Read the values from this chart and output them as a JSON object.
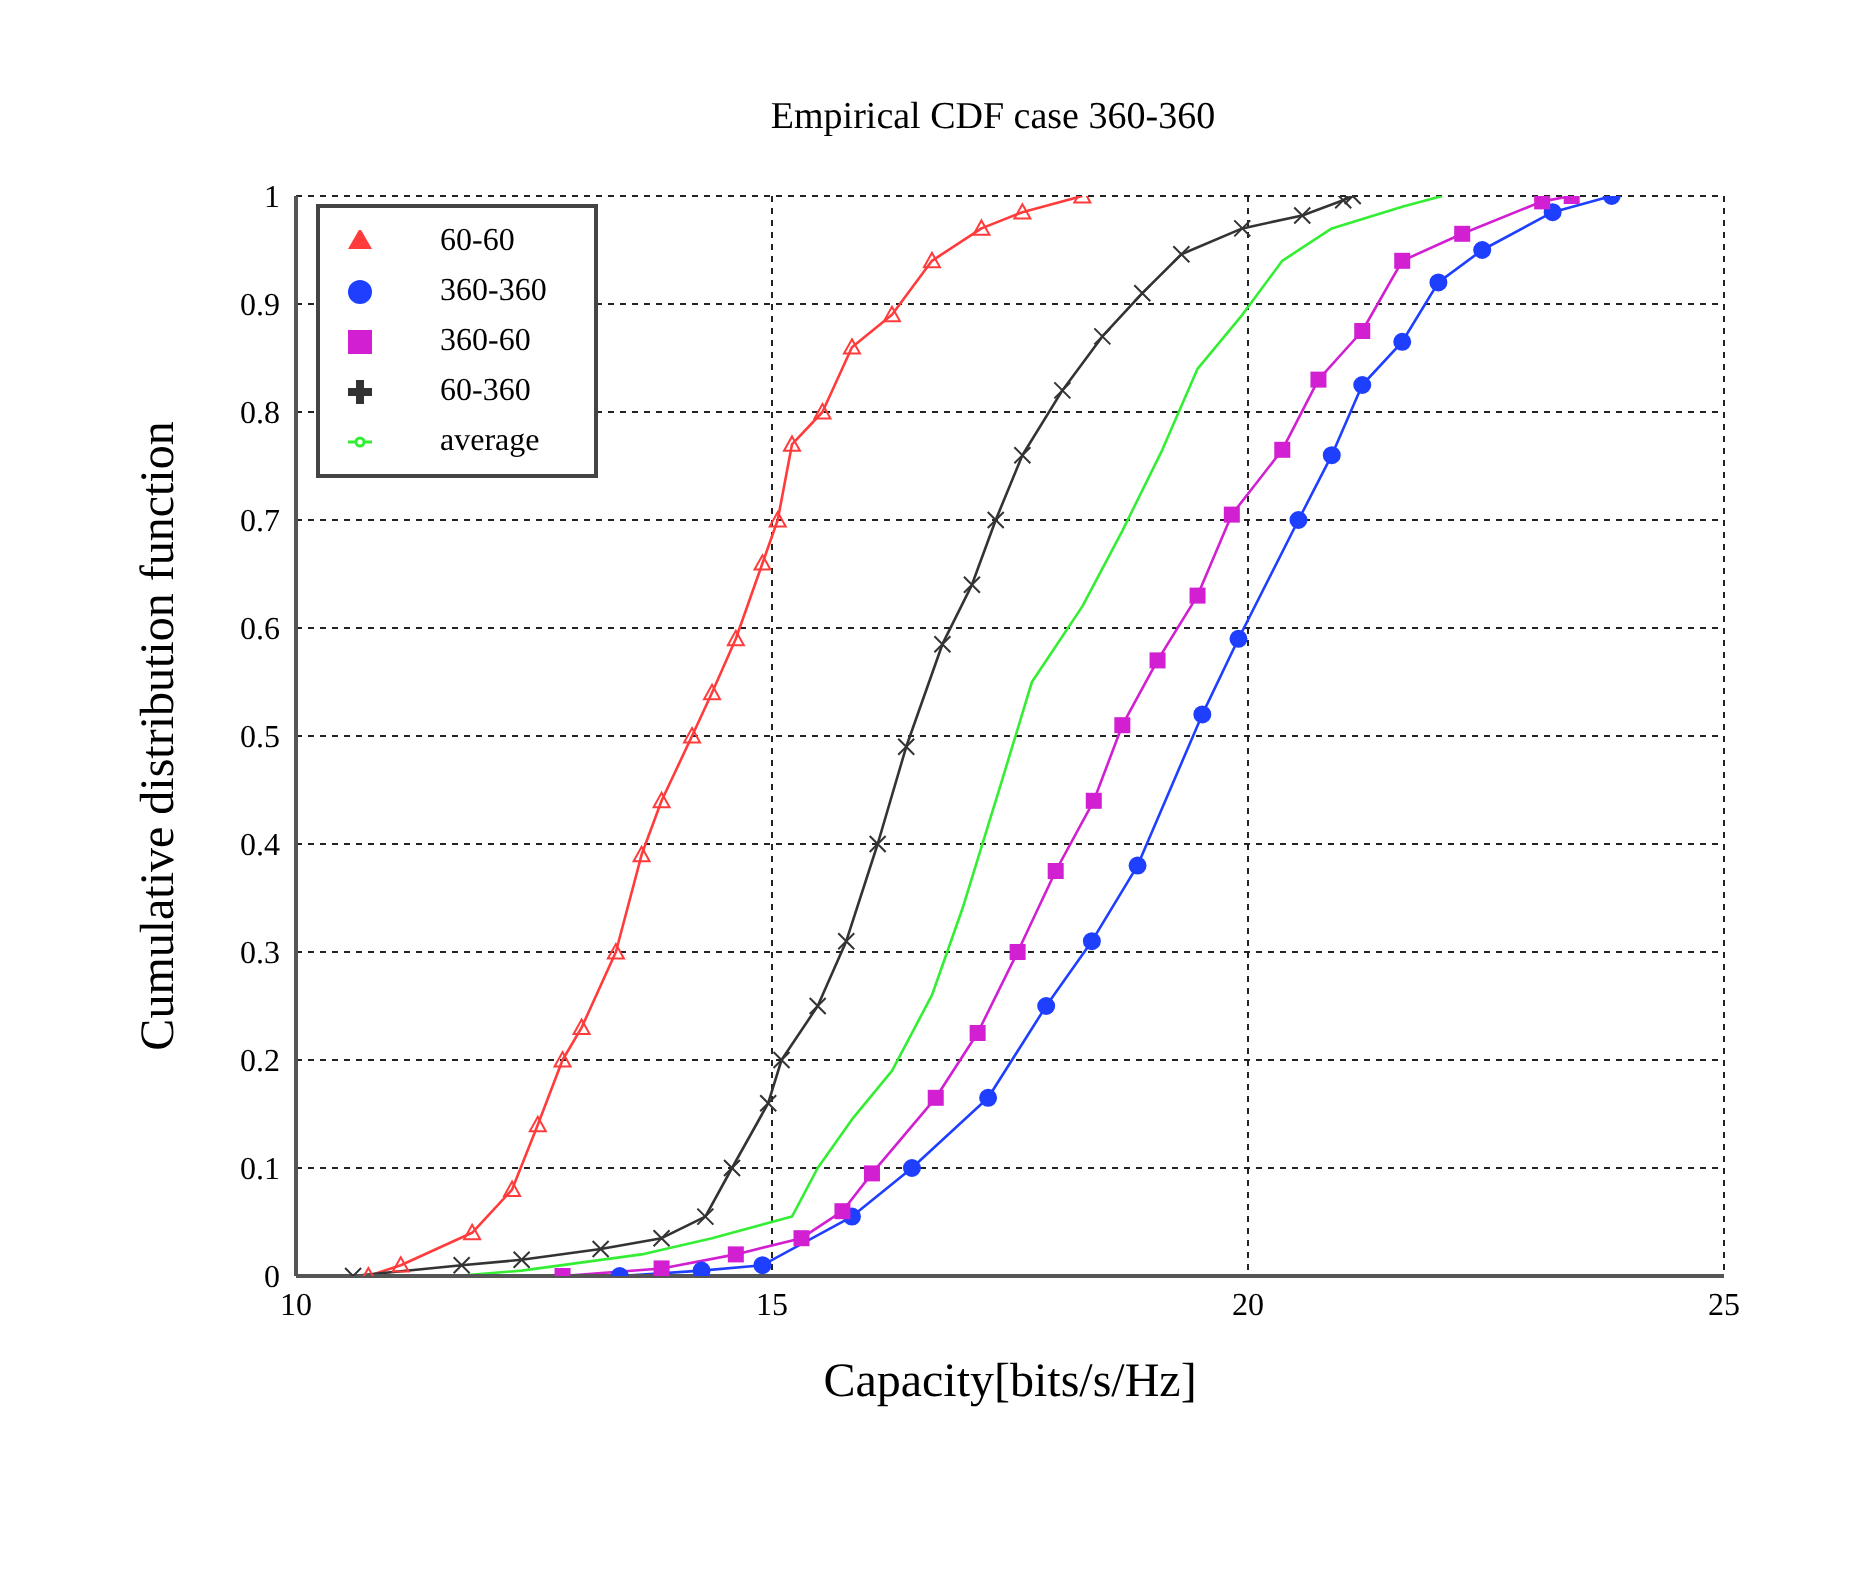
{
  "chart_data": {
    "type": "line",
    "title": "Empirical CDF case 360-360",
    "xlabel": "Capacity[bits/s/Hz]",
    "ylabel": "Cumulative distribution function",
    "xlim": [
      10,
      25
    ],
    "ylim": [
      0,
      1
    ],
    "xticks": [
      10,
      15,
      20,
      25
    ],
    "yticks": [
      0,
      0.1,
      0.2,
      0.3,
      0.4,
      0.5,
      0.6,
      0.7,
      0.8,
      0.9,
      1
    ],
    "grid": true,
    "legend": "top left",
    "line_style": "solid",
    "series": [
      {
        "name": "60-60",
        "color": "#ff3b3b",
        "marker": "triangle",
        "x": [
          10.76,
          11.1,
          11.85,
          12.27,
          12.54,
          12.8,
          13.0,
          13.36,
          13.63,
          13.84,
          14.16,
          14.37,
          14.62,
          14.9,
          15.06,
          15.21,
          15.53,
          15.84,
          16.26,
          16.68,
          17.2,
          17.63,
          18.26
        ],
        "values": [
          0,
          0.01,
          0.04,
          0.08,
          0.14,
          0.2,
          0.23,
          0.3,
          0.39,
          0.44,
          0.5,
          0.54,
          0.59,
          0.66,
          0.7,
          0.77,
          0.8,
          0.86,
          0.89,
          0.94,
          0.97,
          0.985,
          1
        ]
      },
      {
        "name": "360-360",
        "color": "#1f3fff",
        "marker": "circle",
        "x": [
          13.4,
          14.26,
          14.9,
          15.84,
          16.47,
          17.27,
          17.88,
          18.36,
          18.84,
          19.52,
          19.9,
          20.53,
          20.88,
          21.2,
          21.62,
          22.0,
          22.46,
          23.2,
          23.82
        ],
        "values": [
          0,
          0.005,
          0.01,
          0.055,
          0.1,
          0.165,
          0.25,
          0.31,
          0.38,
          0.52,
          0.59,
          0.7,
          0.76,
          0.825,
          0.865,
          0.92,
          0.95,
          0.985,
          1
        ]
      },
      {
        "name": "360-60",
        "color": "#d11fd1",
        "marker": "square",
        "x": [
          12.8,
          13.84,
          14.62,
          15.31,
          15.74,
          16.05,
          16.72,
          17.16,
          17.58,
          17.98,
          18.38,
          18.68,
          19.05,
          19.47,
          19.83,
          20.36,
          20.74,
          21.2,
          21.62,
          22.25,
          23.09,
          23.4
        ],
        "values": [
          0,
          0.007,
          0.02,
          0.035,
          0.06,
          0.095,
          0.165,
          0.225,
          0.3,
          0.375,
          0.44,
          0.51,
          0.57,
          0.63,
          0.705,
          0.765,
          0.83,
          0.875,
          0.94,
          0.965,
          0.995,
          1
        ]
      },
      {
        "name": "60-360",
        "color": "#333333",
        "marker": "cross",
        "x": [
          10.6,
          11.74,
          12.37,
          13.2,
          13.84,
          14.3,
          14.58,
          14.96,
          15.1,
          15.48,
          15.78,
          16.11,
          16.41,
          16.79,
          17.1,
          17.35,
          17.63,
          18.05,
          18.47,
          18.89,
          19.3,
          19.94,
          20.57,
          21.0,
          21.1
        ],
        "values": [
          0,
          0.01,
          0.015,
          0.025,
          0.035,
          0.055,
          0.1,
          0.16,
          0.2,
          0.25,
          0.31,
          0.4,
          0.49,
          0.585,
          0.64,
          0.7,
          0.76,
          0.82,
          0.87,
          0.91,
          0.946,
          0.97,
          0.982,
          0.996,
          1
        ]
      },
      {
        "name": "average",
        "color": "#33ee33",
        "marker": "none",
        "x": [
          11.68,
          12.37,
          13.63,
          14.37,
          15.21,
          15.48,
          15.84,
          16.26,
          16.68,
          17.0,
          17.42,
          17.73,
          18.26,
          18.68,
          19.1,
          19.47,
          19.94,
          20.36,
          20.88,
          21.62,
          22.04
        ],
        "values": [
          0,
          0.005,
          0.02,
          0.035,
          0.055,
          0.1,
          0.145,
          0.19,
          0.26,
          0.34,
          0.46,
          0.55,
          0.62,
          0.69,
          0.765,
          0.84,
          0.89,
          0.94,
          0.97,
          0.99,
          1
        ]
      }
    ]
  }
}
